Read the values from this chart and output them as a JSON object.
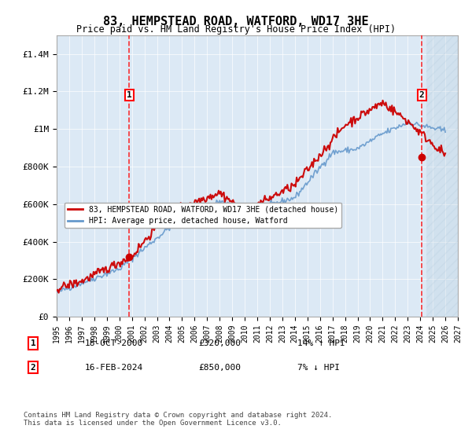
{
  "title": "83, HEMPSTEAD ROAD, WATFORD, WD17 3HE",
  "subtitle": "Price paid vs. HM Land Registry's House Price Index (HPI)",
  "background_color": "#dce9f5",
  "plot_bg_color": "#dce9f5",
  "hatch_color": "#b0c8e0",
  "red_line_color": "#cc0000",
  "blue_line_color": "#6699cc",
  "marker1_date": "18-OCT-2000",
  "marker1_price": 320000,
  "marker1_hpi": "14% ↑ HPI",
  "marker1_x": 2000.8,
  "marker2_date": "16-FEB-2024",
  "marker2_price": 850000,
  "marker2_hpi": "7% ↓ HPI",
  "marker2_x": 2024.12,
  "legend_line1": "83, HEMPSTEAD ROAD, WATFORD, WD17 3HE (detached house)",
  "legend_line2": "HPI: Average price, detached house, Watford",
  "footer": "Contains HM Land Registry data © Crown copyright and database right 2024.\nThis data is licensed under the Open Government Licence v3.0.",
  "ylim": [
    0,
    1500000
  ],
  "xlim_start": 1995,
  "xlim_end": 2027,
  "yticks": [
    0,
    200000,
    400000,
    600000,
    800000,
    1000000,
    1200000,
    1400000
  ],
  "ytick_labels": [
    "£0",
    "£200K",
    "£400K",
    "£600K",
    "£800K",
    "£1M",
    "£1.2M",
    "£1.4M"
  ],
  "xticks": [
    1995,
    1996,
    1997,
    1998,
    1999,
    2000,
    2001,
    2002,
    2003,
    2004,
    2005,
    2006,
    2007,
    2008,
    2009,
    2010,
    2011,
    2012,
    2013,
    2014,
    2015,
    2016,
    2017,
    2018,
    2019,
    2020,
    2021,
    2022,
    2023,
    2024,
    2025,
    2026,
    2027
  ]
}
